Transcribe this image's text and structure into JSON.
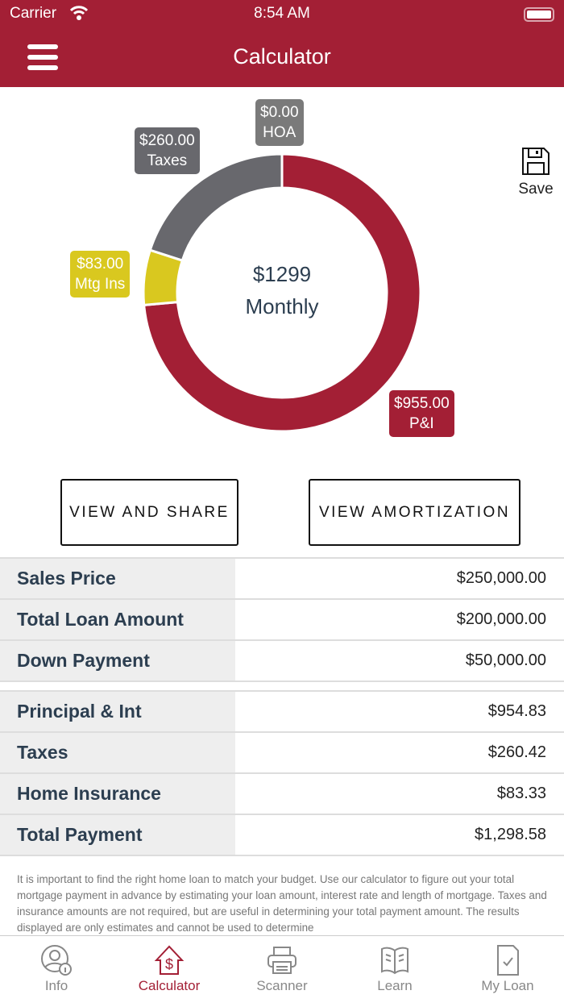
{
  "status_bar": {
    "carrier": "Carrier",
    "time": "8:54 AM"
  },
  "header": {
    "title": "Calculator"
  },
  "chart_data": {
    "type": "pie",
    "subtype": "donut",
    "center_value": "$1299",
    "center_label": "Monthly",
    "slices": [
      {
        "name": "P&I",
        "label": "$955.00",
        "value": 955,
        "color": "#a31f35"
      },
      {
        "name": "Mtg Ins",
        "label": "$83.00",
        "value": 83,
        "color": "#d9c81f"
      },
      {
        "name": "Taxes",
        "label": "$260.00",
        "value": 260,
        "color": "#68686d"
      },
      {
        "name": "HOA",
        "label": "$0.00",
        "value": 0,
        "color": "#7a7a7a"
      }
    ]
  },
  "save_label": "Save",
  "buttons": {
    "view_share": "VIEW AND SHARE",
    "view_amortization": "VIEW AMORTIZATION"
  },
  "loan_table": [
    {
      "label": "Sales Price",
      "value": "$250,000.00"
    },
    {
      "label": "Total Loan Amount",
      "value": "$200,000.00"
    },
    {
      "label": "Down Payment",
      "value": "$50,000.00"
    }
  ],
  "payment_table": [
    {
      "label": "Principal & Int",
      "value": "$954.83"
    },
    {
      "label": "Taxes",
      "value": "$260.42"
    },
    {
      "label": "Home Insurance",
      "value": "$83.33"
    },
    {
      "label": "Total Payment",
      "value": "$1,298.58"
    }
  ],
  "disclaimer": "It is important to find the right home loan to match your budget. Use our calculator to figure out your total mortgage payment in advance by estimating your loan amount, interest rate and length of mortgage. Taxes and insurance amounts are not required, but are useful in determining your total payment amount. The results displayed are only estimates and cannot be used to determine",
  "tabs": [
    {
      "label": "Info",
      "icon": "user-info-icon"
    },
    {
      "label": "Calculator",
      "icon": "house-dollar-icon",
      "active": true
    },
    {
      "label": "Scanner",
      "icon": "printer-icon"
    },
    {
      "label": "Learn",
      "icon": "book-icon"
    },
    {
      "label": "My Loan",
      "icon": "document-check-icon"
    }
  ]
}
